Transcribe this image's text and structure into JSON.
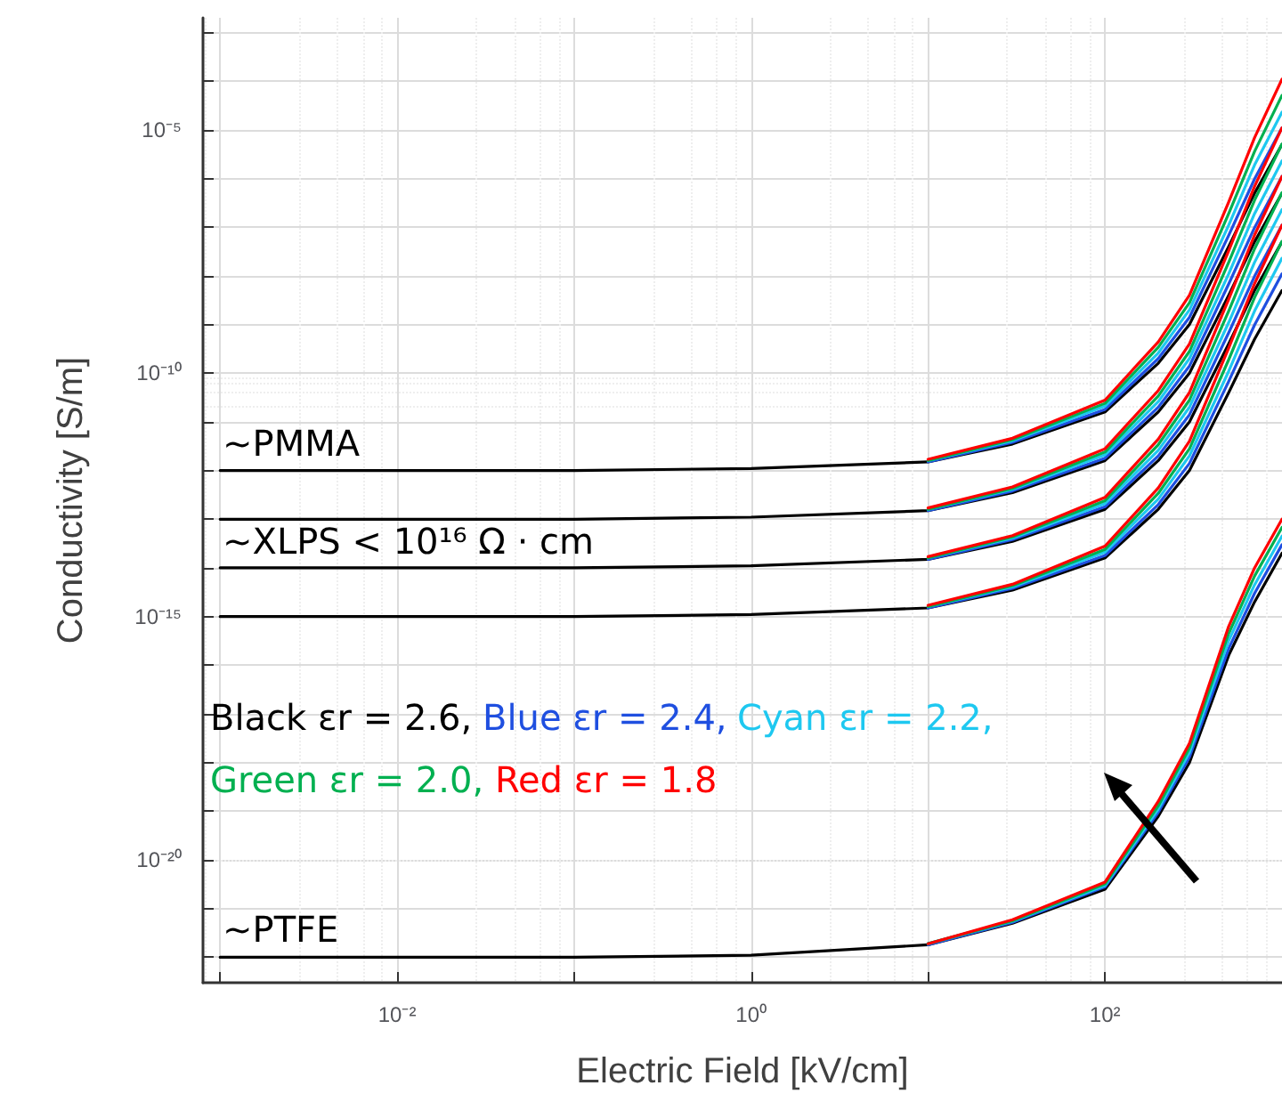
{
  "chart_data": {
    "type": "line",
    "xlabel": "Electric Field [kV/cm]",
    "ylabel": "Conductivity [S/m]",
    "log": "xy",
    "grid": true,
    "marker": "none",
    "line_style": "solid",
    "x": [
      0.001,
      0.1,
      1,
      10,
      30,
      100,
      200,
      300,
      500,
      700,
      1000
    ],
    "xlim": [
      0.0008,
      1000
    ],
    "xticks": [
      {
        "value": 0.001,
        "label": null
      },
      {
        "value": 0.01,
        "label": "10⁻²"
      },
      {
        "value": 0.1,
        "label": null
      },
      {
        "value": 1,
        "label": "10⁰"
      },
      {
        "value": 10,
        "label": null
      },
      {
        "value": 100,
        "label": "10²"
      }
    ],
    "ylim": [
      3e-23,
      0.002
    ],
    "yticks": [
      {
        "value": 1e-22,
        "label": null
      },
      {
        "value": 1e-21,
        "label": null
      },
      {
        "value": 1e-20,
        "label": "10⁻²⁰"
      },
      {
        "value": 1e-19,
        "label": null
      },
      {
        "value": 1e-18,
        "label": null
      },
      {
        "value": 1e-17,
        "label": null
      },
      {
        "value": 1e-16,
        "label": null
      },
      {
        "value": 1e-15,
        "label": "10⁻¹⁵"
      },
      {
        "value": 1e-14,
        "label": null
      },
      {
        "value": 1e-13,
        "label": null
      },
      {
        "value": 1e-12,
        "label": null
      },
      {
        "value": 1e-11,
        "label": null
      },
      {
        "value": 1e-10,
        "label": "10⁻¹⁰"
      },
      {
        "value": 1e-09,
        "label": null
      },
      {
        "value": 1e-08,
        "label": null
      },
      {
        "value": 1e-07,
        "label": null
      },
      {
        "value": 1e-06,
        "label": null
      },
      {
        "value": 1e-05,
        "label": "10⁻⁵"
      },
      {
        "value": 0.0001,
        "label": null
      },
      {
        "value": 0.001,
        "label": null
      }
    ],
    "series": [
      {
        "color": "#000000",
        "values": [
          1e-12,
          1e-12,
          1.1e-12,
          1.5e-12,
          3.5e-12,
          1.6e-11,
          1.6e-10,
          1e-09,
          4e-08,
          5e-07,
          5e-06
        ]
      },
      {
        "color": "#1f4fe0",
        "values": [
          null,
          null,
          null,
          1.5e-12,
          3.8e-12,
          1.8e-11,
          2e-10,
          1.4e-09,
          6.8e-08,
          9.8e-07,
          1.1e-05
        ]
      },
      {
        "color": "#1ec8f0",
        "values": [
          null,
          null,
          null,
          1.6e-12,
          4.1e-12,
          2.1e-11,
          2.6e-10,
          2e-09,
          1.1e-07,
          1.9e-06,
          2.3e-05
        ]
      },
      {
        "color": "#00b050",
        "values": [
          null,
          null,
          null,
          1.6e-12,
          4.3e-12,
          2.4e-11,
          3.4e-10,
          2.8e-09,
          1.9e-07,
          3.6e-06,
          5.1e-05
        ]
      },
      {
        "color": "#ff0000",
        "values": [
          null,
          null,
          null,
          1.7e-12,
          4.6e-12,
          2.8e-11,
          4.4e-10,
          4e-09,
          3.3e-07,
          6.9e-06,
          0.00011
        ]
      },
      {
        "color": "#000000",
        "values": [
          1e-13,
          1e-13,
          1.1e-13,
          1.5e-13,
          3.5e-13,
          1.6e-12,
          1.6e-11,
          1e-10,
          4e-09,
          5e-08,
          5e-07
        ]
      },
      {
        "color": "#1f4fe0",
        "values": [
          null,
          null,
          null,
          1.5e-13,
          3.8e-13,
          1.8e-12,
          2e-11,
          1.4e-10,
          6.8e-09,
          9.8e-08,
          1.1e-06
        ]
      },
      {
        "color": "#1ec8f0",
        "values": [
          null,
          null,
          null,
          1.6e-13,
          4.1e-13,
          2.1e-12,
          2.6e-11,
          2e-10,
          1.1e-08,
          1.9e-07,
          2.3e-06
        ]
      },
      {
        "color": "#00b050",
        "values": [
          null,
          null,
          null,
          1.6e-13,
          4.3e-13,
          2.4e-12,
          3.4e-11,
          2.8e-10,
          1.9e-08,
          3.6e-07,
          5.1e-06
        ]
      },
      {
        "color": "#ff0000",
        "values": [
          null,
          null,
          null,
          1.7e-13,
          4.6e-13,
          2.8e-12,
          4.4e-11,
          4e-10,
          3.3e-08,
          6.9e-07,
          1.1e-05
        ]
      },
      {
        "color": "#000000",
        "values": [
          1e-14,
          1e-14,
          1.1e-14,
          1.5e-14,
          3.5e-14,
          1.6e-13,
          1.6e-12,
          1e-11,
          4e-10,
          5e-09,
          5e-08
        ]
      },
      {
        "color": "#1f4fe0",
        "values": [
          null,
          null,
          null,
          1.5e-14,
          3.8e-14,
          1.8e-13,
          2e-12,
          1.4e-11,
          6.8e-10,
          9.8e-09,
          1.1e-07
        ]
      },
      {
        "color": "#1ec8f0",
        "values": [
          null,
          null,
          null,
          1.6e-14,
          4.1e-14,
          2.1e-13,
          2.6e-12,
          2e-11,
          1.1e-09,
          1.9e-08,
          2.3e-07
        ]
      },
      {
        "color": "#00b050",
        "values": [
          null,
          null,
          null,
          1.6e-14,
          4.3e-14,
          2.4e-13,
          3.4e-12,
          2.8e-11,
          1.9e-09,
          3.6e-08,
          5.1e-07
        ]
      },
      {
        "color": "#ff0000",
        "values": [
          null,
          null,
          null,
          1.7e-14,
          4.6e-14,
          2.8e-13,
          4.4e-12,
          4e-11,
          3.3e-09,
          6.9e-08,
          1.1e-06
        ]
      },
      {
        "color": "#000000",
        "values": [
          1e-15,
          1e-15,
          1.1e-15,
          1.5e-15,
          3.5e-15,
          1.6e-14,
          1.6e-13,
          1e-12,
          4e-11,
          5e-10,
          5e-09
        ]
      },
      {
        "color": "#1f4fe0",
        "values": [
          null,
          null,
          null,
          1.5e-15,
          3.8e-15,
          1.8e-14,
          2e-13,
          1.4e-12,
          6.8e-11,
          9.8e-10,
          1.1e-08
        ]
      },
      {
        "color": "#1ec8f0",
        "values": [
          null,
          null,
          null,
          1.6e-15,
          4.1e-15,
          2.1e-14,
          2.6e-13,
          2e-12,
          1.1e-10,
          1.9e-09,
          2.3e-08
        ]
      },
      {
        "color": "#00b050",
        "values": [
          null,
          null,
          null,
          1.6e-15,
          4.3e-15,
          2.4e-14,
          3.4e-13,
          2.8e-12,
          1.9e-10,
          3.6e-09,
          5.1e-08
        ]
      },
      {
        "color": "#ff0000",
        "values": [
          null,
          null,
          null,
          1.7e-15,
          4.6e-15,
          2.8e-14,
          4.4e-13,
          4e-12,
          3.3e-10,
          6.9e-09,
          1.1e-07
        ]
      },
      {
        "color": "#000000",
        "values": [
          1e-22,
          1e-22,
          1.1e-22,
          1.8e-22,
          5e-22,
          2.5e-21,
          7.9e-20,
          1e-18,
          1.6e-16,
          2e-15,
          2e-14
        ]
      },
      {
        "color": "#1f4fe0",
        "values": [
          null,
          null,
          null,
          1.8e-22,
          5.2e-22,
          2.8e-21,
          9.5e-20,
          1.3e-18,
          2.2e-16,
          3e-15,
          3e-14
        ]
      },
      {
        "color": "#1ec8f0",
        "values": [
          null,
          null,
          null,
          1.9e-22,
          5.5e-22,
          3e-21,
          1.1e-19,
          1.6e-18,
          3.2e-16,
          4.5e-15,
          4.5e-14
        ]
      },
      {
        "color": "#00b050",
        "values": [
          null,
          null,
          null,
          1.9e-22,
          5.6e-22,
          3.2e-21,
          1.3e-19,
          2e-18,
          4.5e-16,
          6.8e-15,
          6.8e-14
        ]
      },
      {
        "color": "#ff0000",
        "values": [
          null,
          null,
          null,
          1.9e-22,
          5.9e-22,
          3.5e-21,
          1.6e-19,
          2.5e-18,
          6.3e-16,
          1e-14,
          1e-13
        ]
      }
    ],
    "annotations": [
      "~PMMA",
      "~XLPS < 10¹⁶ Ω · cm",
      "~PTFE",
      "Black εr = 2.6,",
      "Blue εr = 2.4,",
      "Cyan εr = 2.2,",
      "Green εr = 2.0,",
      "Red εr = 1.8"
    ]
  }
}
